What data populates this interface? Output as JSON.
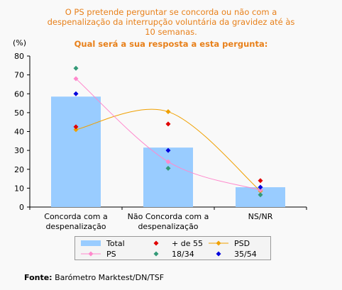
{
  "title_lines": [
    "O PS pretende perguntar se concorda ou não com a",
    "despenalização da interrupção voluntária da gravidez até às",
    "10 semanas."
  ],
  "subtitle": "Qual será a sua resposta a esta pergunta:",
  "source_label": "Fonte:",
  "source_text": "Barómetro Marktest/DN/TSF",
  "chart_data": {
    "type": "bar",
    "unit_label": "(%)",
    "categories": [
      [
        "Concorda com a",
        "despenalização"
      ],
      [
        "Não Concorda com a",
        "despenalização"
      ],
      [
        "NS/NR"
      ]
    ],
    "ylim": [
      0,
      80
    ],
    "yticks": [
      0,
      10,
      20,
      30,
      40,
      50,
      60,
      70,
      80
    ],
    "series": [
      {
        "name": "Total",
        "kind": "bar",
        "color": "#99ccff",
        "values": [
          58.5,
          31.5,
          10.5
        ]
      },
      {
        "name": "+ de 55",
        "kind": "marker",
        "color": "#e00000",
        "values": [
          42.5,
          44,
          14
        ]
      },
      {
        "name": "PSD",
        "kind": "line",
        "color": "#f0a000",
        "values": [
          41,
          50.5,
          8.5
        ]
      },
      {
        "name": "PS",
        "kind": "line",
        "color": "#ff88cc",
        "values": [
          68,
          24,
          9
        ]
      },
      {
        "name": "18/34",
        "kind": "marker",
        "color": "#339977",
        "values": [
          73.5,
          20.5,
          6.5
        ]
      },
      {
        "name": "35/54",
        "kind": "marker",
        "color": "#0000dd",
        "values": [
          60,
          30,
          10.5
        ]
      }
    ]
  }
}
